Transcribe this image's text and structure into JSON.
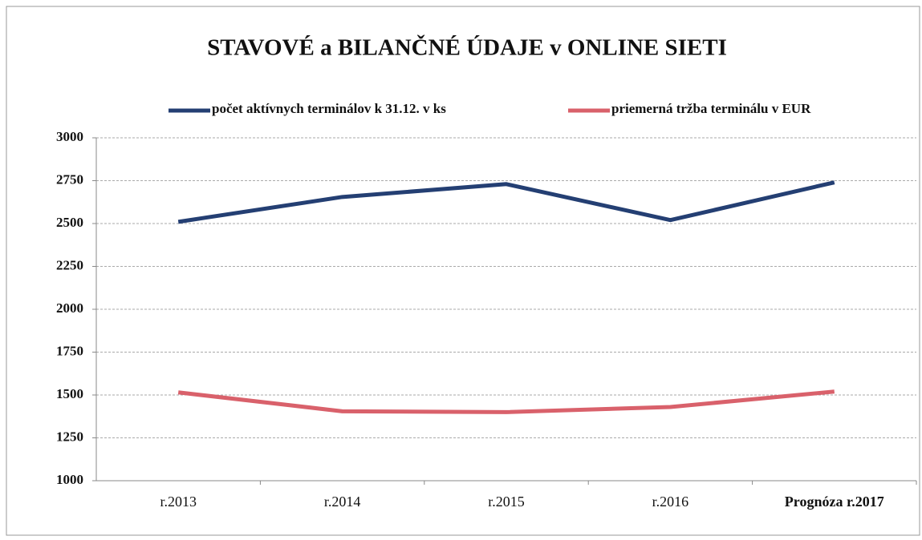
{
  "chart_data": {
    "type": "line",
    "title": "STAVOVÉ a BILANČNÉ ÚDAJE v ONLINE SIETI",
    "categories": [
      "r.2013",
      "r.2014",
      "r.2015",
      "r.2016",
      "Prognóza r.2017"
    ],
    "series": [
      {
        "name": "počet aktívnych terminálov k 31.12. v ks",
        "color": "#243f73",
        "values": [
          2510,
          2655,
          2730,
          2520,
          2740
        ]
      },
      {
        "name": "priemerná tržba terminálu v EUR",
        "color": "#d9616b",
        "values": [
          1515,
          1405,
          1400,
          1430,
          1520
        ]
      }
    ],
    "ylim": [
      1000,
      3000
    ],
    "yticks": [
      1000,
      1250,
      1500,
      1750,
      2000,
      2250,
      2500,
      2750,
      3000
    ],
    "grid": true,
    "legend": "top"
  }
}
